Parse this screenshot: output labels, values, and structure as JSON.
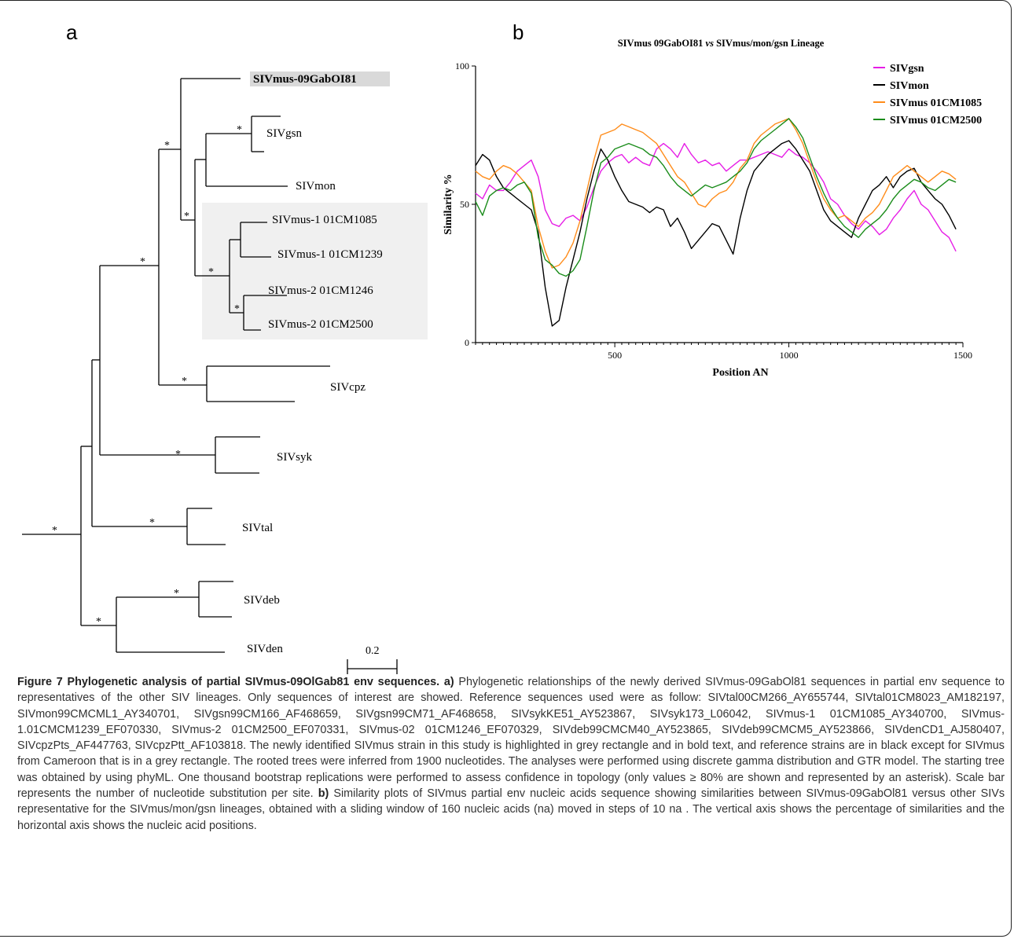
{
  "figure": {
    "panel_a_label": "a",
    "panel_b_label": "b"
  },
  "tree": {
    "bootstrap_mark": "*",
    "scale_label": "0.2",
    "tips": [
      {
        "id": "mus09",
        "label": "SIVmus-09GabOI81",
        "highlight": true
      },
      {
        "id": "gsn",
        "label": "SIVgsn"
      },
      {
        "id": "mon",
        "label": "SIVmon"
      },
      {
        "id": "m1085",
        "label": "SIVmus-1 01CM1085"
      },
      {
        "id": "m1239",
        "label": "SIVmus-1 01CM1239"
      },
      {
        "id": "m1246",
        "label": "SIVmus-2 01CM1246"
      },
      {
        "id": "m2500",
        "label": "SIVmus-2 01CM2500"
      },
      {
        "id": "cpz",
        "label": "SIVcpz"
      },
      {
        "id": "syk",
        "label": "SIVsyk"
      },
      {
        "id": "tal",
        "label": "SIVtal"
      },
      {
        "id": "deb",
        "label": "SIVdeb"
      },
      {
        "id": "den",
        "label": "SIVden"
      }
    ]
  },
  "chart_data": {
    "type": "line",
    "title": "SIVmus 09GabOI81 vs SIVmus/mon/gsn Lineage",
    "title_parts": [
      "SIVmus 09GabOI81 ",
      "vs",
      " SIVmus/mon/gsn Lineage"
    ],
    "xlabel": "Position AN",
    "ylabel": "Similarity %",
    "xlim": [
      100,
      1500
    ],
    "ylim": [
      0,
      100
    ],
    "x_ticks": [
      500,
      1000,
      1500
    ],
    "y_ticks": [
      0,
      50,
      100
    ],
    "legend_position": "top-right",
    "x": [
      100,
      120,
      140,
      160,
      180,
      200,
      220,
      240,
      260,
      280,
      300,
      320,
      340,
      360,
      380,
      400,
      420,
      440,
      460,
      480,
      500,
      520,
      540,
      560,
      580,
      600,
      620,
      640,
      660,
      680,
      700,
      720,
      740,
      760,
      780,
      800,
      820,
      840,
      860,
      880,
      900,
      920,
      940,
      960,
      980,
      1000,
      1020,
      1040,
      1060,
      1080,
      1100,
      1120,
      1140,
      1160,
      1180,
      1200,
      1220,
      1240,
      1260,
      1280,
      1300,
      1320,
      1340,
      1360,
      1380,
      1400,
      1420,
      1440,
      1460,
      1480
    ],
    "series": [
      {
        "name": "SIVgsn",
        "color": "#e61ee6",
        "values": [
          54,
          52,
          57,
          55,
          55,
          58,
          62,
          64,
          66,
          60,
          48,
          43,
          42,
          45,
          46,
          44,
          49,
          56,
          62,
          65,
          67,
          68,
          65,
          67,
          65,
          64,
          70,
          72,
          70,
          67,
          72,
          68,
          65,
          66,
          64,
          65,
          62,
          64,
          66,
          66,
          67,
          68,
          69,
          68,
          67,
          70,
          68,
          67,
          65,
          62,
          58,
          52,
          50,
          46,
          43,
          41,
          44,
          42,
          39,
          41,
          45,
          48,
          52,
          55,
          50,
          48,
          44,
          40,
          38,
          33
        ]
      },
      {
        "name": "SIVmon",
        "color": "#000000",
        "values": [
          64,
          68,
          66,
          60,
          56,
          54,
          52,
          50,
          48,
          40,
          20,
          6,
          8,
          20,
          30,
          40,
          52,
          62,
          70,
          66,
          60,
          55,
          51,
          50,
          49,
          47,
          49,
          48,
          42,
          45,
          40,
          34,
          37,
          40,
          43,
          42,
          37,
          32,
          45,
          55,
          62,
          65,
          68,
          70,
          72,
          73,
          70,
          66,
          62,
          55,
          48,
          44,
          42,
          40,
          38,
          45,
          50,
          55,
          57,
          60,
          56,
          60,
          62,
          63,
          58,
          55,
          52,
          50,
          46,
          41
        ]
      },
      {
        "name": "SIVmus 01CM1085",
        "color": "#ff8c1a",
        "values": [
          62,
          60,
          59,
          62,
          64,
          63,
          61,
          58,
          55,
          42,
          33,
          27,
          28,
          31,
          36,
          44,
          55,
          66,
          75,
          76,
          77,
          79,
          78,
          77,
          76,
          74,
          72,
          68,
          64,
          60,
          58,
          54,
          50,
          49,
          52,
          54,
          55,
          58,
          63,
          66,
          72,
          75,
          77,
          79,
          80,
          81,
          77,
          72,
          65,
          58,
          52,
          48,
          45,
          46,
          44,
          42,
          45,
          47,
          50,
          55,
          60,
          62,
          64,
          62,
          60,
          58,
          60,
          62,
          61,
          59
        ]
      },
      {
        "name": "SIVmus 01CM2500",
        "color": "#1a8c1a",
        "values": [
          51,
          46,
          53,
          55,
          56,
          55,
          57,
          58,
          54,
          38,
          30,
          28,
          25,
          24,
          26,
          30,
          42,
          55,
          65,
          67,
          70,
          71,
          72,
          71,
          70,
          68,
          67,
          64,
          60,
          57,
          55,
          53,
          55,
          57,
          56,
          57,
          58,
          60,
          62,
          65,
          70,
          73,
          75,
          77,
          79,
          81,
          78,
          74,
          67,
          60,
          54,
          49,
          45,
          42,
          40,
          38,
          41,
          43,
          45,
          48,
          52,
          55,
          57,
          59,
          58,
          56,
          55,
          57,
          59,
          58
        ]
      }
    ]
  },
  "caption": {
    "title": "Figure 7 Phylogenetic analysis of partial SIVmus-09OlGab81 env sequences.",
    "body_a_label": "a)",
    "body_a": "Phylogenetic relationships of the newly derived SIVmus-09GabOl81 sequences in partial env sequence to representatives of the other SIV lineages. Only sequences of interest are showed. Reference sequences used were as follow: SIVtal00CM266_AY655744, SIVtal01CM8023_AM182197, SIVmon99CMCML1_AY340701, SIVgsn99CM166_AF468659, SIVgsn99CM71_AF468658, SIVsykKE51_AY523867, SIVsyk173_L06042, SIVmus-1 01CM1085_AY340700, SIVmus-1.01CMCM1239_EF070330, SIVmus-2 01CM2500_EF070331, SIVmus-02 01CM1246_EF070329, SIVdeb99CMCM40_AY523865, SIVdeb99CMCM5_AY523866, SIVdenCD1_AJ580407, SIVcpzPts_AF447763, SIVcpzPtt_AF103818. The newly identified SIVmus strain in this study is highlighted in grey rectangle and in bold text, and reference strains are in black except for SIVmus from Cameroon that is in a grey rectangle. The rooted trees were inferred from 1900 nucleotides. The analyses were performed using discrete gamma distribution and GTR model. The starting tree was obtained by using phyML. One thousand bootstrap replications were performed to assess confidence in topology (only values ≥ 80% are shown and represented by an asterisk). Scale bar represents the number of nucleotide substitution per site.",
    "body_b_label": "b)",
    "body_b": "Similarity plots of SIVmus partial env nucleic acids sequence showing similarities between SIVmus-09GabOl81 versus other SIVs representative for the SIVmus/mon/gsn lineages, obtained with a sliding window of 160 nucleic acids (na) moved in steps of 10 na . The vertical axis shows the percentage of similarities and the horizontal axis shows the nucleic acid positions."
  }
}
